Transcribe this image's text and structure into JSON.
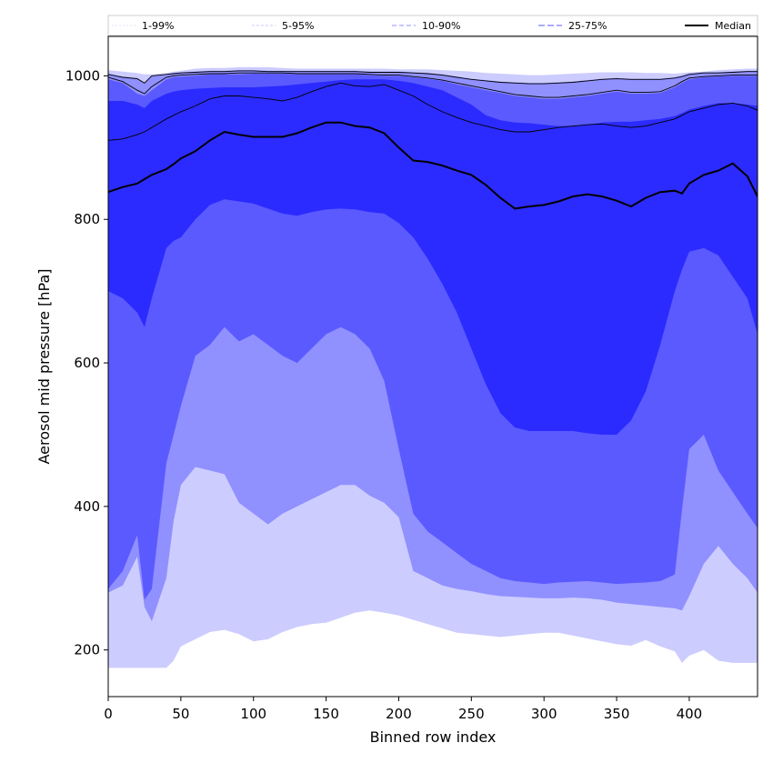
{
  "chart_data": {
    "type": "area",
    "xlabel": "Binned row index",
    "ylabel": "Aerosol mid pressure [hPa]",
    "xlim": [
      0,
      447
    ],
    "ylim": [
      135,
      1055
    ],
    "xticks": [
      0,
      50,
      100,
      150,
      200,
      250,
      300,
      350,
      400
    ],
    "yticks": [
      200,
      400,
      600,
      800,
      1000
    ],
    "grid": false,
    "legend_position": "top",
    "legend": [
      "1-99%",
      "5-95%",
      "10-90%",
      "25-75%",
      "Median"
    ],
    "x": [
      0,
      10,
      20,
      25,
      30,
      40,
      45,
      50,
      60,
      70,
      80,
      90,
      100,
      110,
      120,
      130,
      140,
      150,
      160,
      170,
      180,
      190,
      200,
      210,
      220,
      230,
      240,
      250,
      260,
      270,
      280,
      290,
      300,
      310,
      320,
      330,
      340,
      350,
      360,
      370,
      380,
      390,
      395,
      400,
      410,
      420,
      430,
      440,
      447
    ],
    "bands": [
      {
        "name": "1-99%",
        "color": "#ccccff",
        "lower": [
          175,
          175,
          175,
          175,
          175,
          175,
          185,
          205,
          215,
          225,
          228,
          222,
          212,
          215,
          225,
          232,
          236,
          238,
          245,
          252,
          255,
          252,
          248,
          242,
          236,
          230,
          224,
          222,
          220,
          218,
          220,
          222,
          224,
          224,
          220,
          216,
          212,
          208,
          206,
          214,
          205,
          198,
          182,
          192,
          200,
          185,
          182,
          182,
          182
        ],
        "upper": [
          1008,
          1006,
          1004,
          1002,
          1002,
          1004,
          1006,
          1007,
          1010,
          1011,
          1011,
          1012,
          1012,
          1012,
          1011,
          1010,
          1010,
          1010,
          1010,
          1010,
          1010,
          1010,
          1009,
          1009,
          1009,
          1008,
          1007,
          1006,
          1004,
          1003,
          1002,
          1001,
          1001,
          1002,
          1003,
          1004,
          1005,
          1005,
          1005,
          1004,
          1004,
          1003,
          1004,
          1005,
          1006,
          1008,
          1009,
          1010,
          1010
        ]
      },
      {
        "name": "5-95%",
        "color": "#9090ff",
        "lower": [
          280,
          290,
          330,
          260,
          240,
          300,
          380,
          430,
          455,
          450,
          445,
          405,
          390,
          375,
          390,
          400,
          410,
          420,
          430,
          430,
          415,
          405,
          385,
          310,
          300,
          290,
          285,
          282,
          278,
          275,
          274,
          273,
          272,
          272,
          273,
          272,
          270,
          266,
          264,
          262,
          260,
          258,
          255,
          275,
          320,
          345,
          320,
          300,
          280
        ],
        "upper": [
          1003,
          999,
          997,
          990,
          1000,
          1002,
          1004,
          1005,
          1006,
          1007,
          1007,
          1008,
          1008,
          1007,
          1007,
          1007,
          1007,
          1007,
          1007,
          1007,
          1006,
          1006,
          1006,
          1005,
          1004,
          1002,
          999,
          996,
          994,
          992,
          991,
          990,
          990,
          991,
          992,
          994,
          996,
          997,
          996,
          996,
          996,
          998,
          1000,
          1003,
          1005,
          1005,
          1006,
          1007,
          1007
        ]
      },
      {
        "name": "10-90%",
        "color": "#5a5aff",
        "lower": [
          285,
          310,
          360,
          270,
          285,
          460,
          500,
          540,
          610,
          625,
          650,
          630,
          640,
          625,
          610,
          600,
          620,
          640,
          650,
          640,
          620,
          575,
          480,
          390,
          365,
          350,
          335,
          320,
          310,
          300,
          296,
          294,
          292,
          294,
          295,
          296,
          294,
          292,
          293,
          294,
          296,
          305,
          395,
          480,
          500,
          450,
          420,
          390,
          370
        ],
        "upper": [
          995,
          990,
          975,
          972,
          980,
          995,
          998,
          999,
          1000,
          1002,
          1002,
          1002,
          1003,
          1003,
          1003,
          1002,
          1002,
          1002,
          1002,
          1002,
          1001,
          1000,
          1000,
          998,
          996,
          993,
          988,
          984,
          980,
          976,
          972,
          970,
          968,
          968,
          970,
          972,
          975,
          978,
          975,
          975,
          976,
          984,
          990,
          995,
          998,
          999,
          1000,
          1000,
          1000
        ]
      },
      {
        "name": "25-75%",
        "color": "#2b2bff",
        "lower": [
          700,
          690,
          670,
          650,
          690,
          760,
          770,
          775,
          800,
          820,
          828,
          825,
          822,
          815,
          808,
          805,
          810,
          814,
          815,
          814,
          810,
          808,
          795,
          775,
          745,
          710,
          670,
          620,
          570,
          530,
          510,
          505,
          505,
          505,
          505,
          502,
          500,
          500,
          520,
          560,
          625,
          700,
          730,
          755,
          760,
          750,
          720,
          690,
          640
        ],
        "upper": [
          965,
          965,
          960,
          955,
          965,
          975,
          978,
          980,
          982,
          983,
          984,
          984,
          984,
          985,
          986,
          988,
          990,
          992,
          994,
          995,
          995,
          995,
          993,
          990,
          985,
          980,
          970,
          960,
          945,
          938,
          935,
          934,
          932,
          930,
          930,
          932,
          935,
          936,
          936,
          938,
          940,
          944,
          948,
          953,
          958,
          962,
          962,
          960,
          958
        ]
      }
    ],
    "quantile_lines": [
      {
        "name": "5-95%",
        "color": "#ccccff",
        "dash": "3,2",
        "values": [
          1002,
          998,
          996,
          990,
          1000,
          1002,
          1003,
          1004,
          1005,
          1006,
          1006,
          1007,
          1007,
          1006,
          1006,
          1006,
          1006,
          1006,
          1006,
          1006,
          1005,
          1005,
          1005,
          1004,
          1003,
          1001,
          998,
          995,
          993,
          991,
          990,
          989,
          989,
          990,
          991,
          993,
          995,
          996,
          995,
          995,
          995,
          997,
          999,
          1002,
          1004,
          1004,
          1005,
          1006,
          1006
        ]
      },
      {
        "name": "10-90%",
        "color": "#9090ff",
        "dash": "5,3",
        "values": [
          998,
          992,
          980,
          975,
          985,
          998,
          1000,
          1001,
          1002,
          1003,
          1003,
          1004,
          1004,
          1004,
          1004,
          1003,
          1003,
          1003,
          1003,
          1003,
          1002,
          1001,
          1001,
          999,
          997,
          994,
          990,
          986,
          982,
          978,
          974,
          972,
          970,
          970,
          972,
          974,
          977,
          980,
          977,
          977,
          978,
          986,
          992,
          997,
          999,
          1000,
          1001,
          1001,
          1001
        ]
      },
      {
        "name": "25-75%",
        "color": "#5a5aff",
        "dash": "7,3",
        "values": [
          910,
          912,
          918,
          922,
          928,
          940,
          945,
          950,
          958,
          968,
          972,
          972,
          970,
          968,
          965,
          970,
          978,
          985,
          990,
          986,
          985,
          988,
          980,
          972,
          960,
          950,
          942,
          935,
          930,
          925,
          922,
          922,
          925,
          928,
          930,
          932,
          933,
          930,
          928,
          930,
          935,
          940,
          945,
          950,
          955,
          960,
          962,
          958,
          952
        ]
      }
    ],
    "median": {
      "name": "Median",
      "color": "#000000",
      "values": [
        838,
        845,
        850,
        856,
        862,
        870,
        877,
        885,
        895,
        910,
        922,
        918,
        915,
        915,
        915,
        920,
        928,
        935,
        935,
        930,
        928,
        920,
        900,
        882,
        880,
        875,
        868,
        862,
        848,
        830,
        815,
        818,
        820,
        825,
        832,
        835,
        832,
        826,
        818,
        830,
        838,
        840,
        836,
        850,
        862,
        868,
        878,
        860,
        832
      ]
    }
  }
}
